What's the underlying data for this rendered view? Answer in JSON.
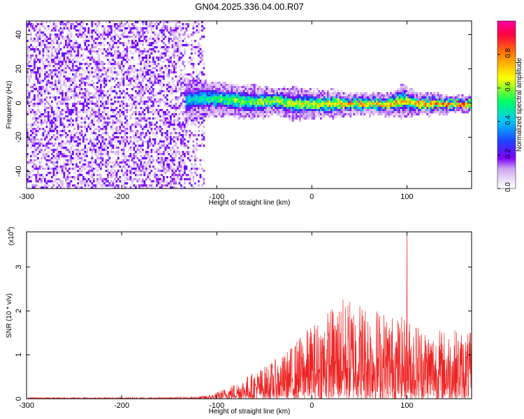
{
  "title": "GN04.2025.336.04.00.R07",
  "chart_data": [
    {
      "type": "heatmap",
      "xlabel": "Height of straight line (km)",
      "ylabel": "Frequency (Hz)",
      "xlim": [
        -300,
        168
      ],
      "ylim": [
        -50,
        48
      ],
      "xticks": [
        -300,
        -200,
        -100,
        0,
        100
      ],
      "xtick_labels": [
        "-300",
        "-200",
        "-100",
        "0",
        "100"
      ],
      "yticks": [
        -40,
        -20,
        0,
        20,
        40
      ],
      "ytick_labels": [
        "-40",
        "-20",
        "0",
        "20",
        "40"
      ],
      "colorbar": {
        "label": "Normalized spectral amplitude",
        "range": [
          0,
          1
        ],
        "ticks": [
          0,
          0.2,
          0.4,
          0.6,
          0.8
        ],
        "tick_labels": [
          "0.0",
          "0.2",
          "0.4",
          "0.6",
          "0.8"
        ],
        "colors": [
          "#ffffff",
          "#e8d8f8",
          "#cca0f0",
          "#8000ff",
          "#2040ff",
          "#00c8ff",
          "#00ff60",
          "#ffff00",
          "#ff8000",
          "#ff0040",
          "#ff00a0"
        ]
      },
      "noise_region_x": [
        -300,
        -113
      ],
      "noise_level": 0.18,
      "band": [
        {
          "x": -133,
          "center": 2,
          "width": 8,
          "peak": 0.45
        },
        {
          "x": -120,
          "center": 3,
          "width": 7,
          "peak": 0.5
        },
        {
          "x": -100,
          "center": 3,
          "width": 6,
          "peak": 0.6
        },
        {
          "x": -80,
          "center": 2,
          "width": 6,
          "peak": 0.65
        },
        {
          "x": -60,
          "center": 1,
          "width": 6,
          "peak": 0.65
        },
        {
          "x": -40,
          "center": 2,
          "width": 5,
          "peak": 0.7
        },
        {
          "x": -20,
          "center": 0,
          "width": 6,
          "peak": 0.7
        },
        {
          "x": 0,
          "center": 0,
          "width": 5,
          "peak": 0.75
        },
        {
          "x": 20,
          "center": 0,
          "width": 5,
          "peak": 0.8
        },
        {
          "x": 40,
          "center": 0,
          "width": 4,
          "peak": 0.85
        },
        {
          "x": 60,
          "center": 0,
          "width": 4,
          "peak": 0.85
        },
        {
          "x": 80,
          "center": 0,
          "width": 4,
          "peak": 0.85
        },
        {
          "x": 95,
          "center": 2,
          "width": 6,
          "peak": 0.8
        },
        {
          "x": 110,
          "center": 0,
          "width": 4,
          "peak": 0.85
        },
        {
          "x": 130,
          "center": 0,
          "width": 4,
          "peak": 0.9
        },
        {
          "x": 150,
          "center": 0,
          "width": 3,
          "peak": 0.95
        },
        {
          "x": 168,
          "center": 0,
          "width": 3,
          "peak": 0.95
        }
      ]
    },
    {
      "type": "line",
      "xlabel": "Height of straight line (km)",
      "ylabel": "SNR (10 * v/v)",
      "y_multiplier": "(x10",
      "y_multiplier_exp": "4",
      "y_multiplier_close": ")",
      "xlim": [
        -300,
        168
      ],
      "ylim": [
        0,
        3.8
      ],
      "xticks": [
        -300,
        -200,
        -100,
        0,
        100
      ],
      "xtick_labels": [
        "-300",
        "-200",
        "-100",
        "0",
        "100"
      ],
      "yticks": [
        0,
        1,
        2,
        3
      ],
      "ytick_labels": [
        "0",
        "1",
        "2",
        "3"
      ],
      "color": "#ee2222",
      "series": [
        {
          "name": "SNR",
          "envelope_x": [
            -300,
            -150,
            -120,
            -105,
            -90,
            -70,
            -50,
            -30,
            -10,
            10,
            30,
            50,
            70,
            90,
            110,
            130,
            150,
            168
          ],
          "envelope_max": [
            0.03,
            0.03,
            0.05,
            0.1,
            0.25,
            0.5,
            0.75,
            1.0,
            1.5,
            1.9,
            2.3,
            2.3,
            2.1,
            1.9,
            1.8,
            1.6,
            1.6,
            1.5
          ],
          "spike": {
            "x": 100,
            "value": 3.8
          }
        }
      ]
    }
  ]
}
